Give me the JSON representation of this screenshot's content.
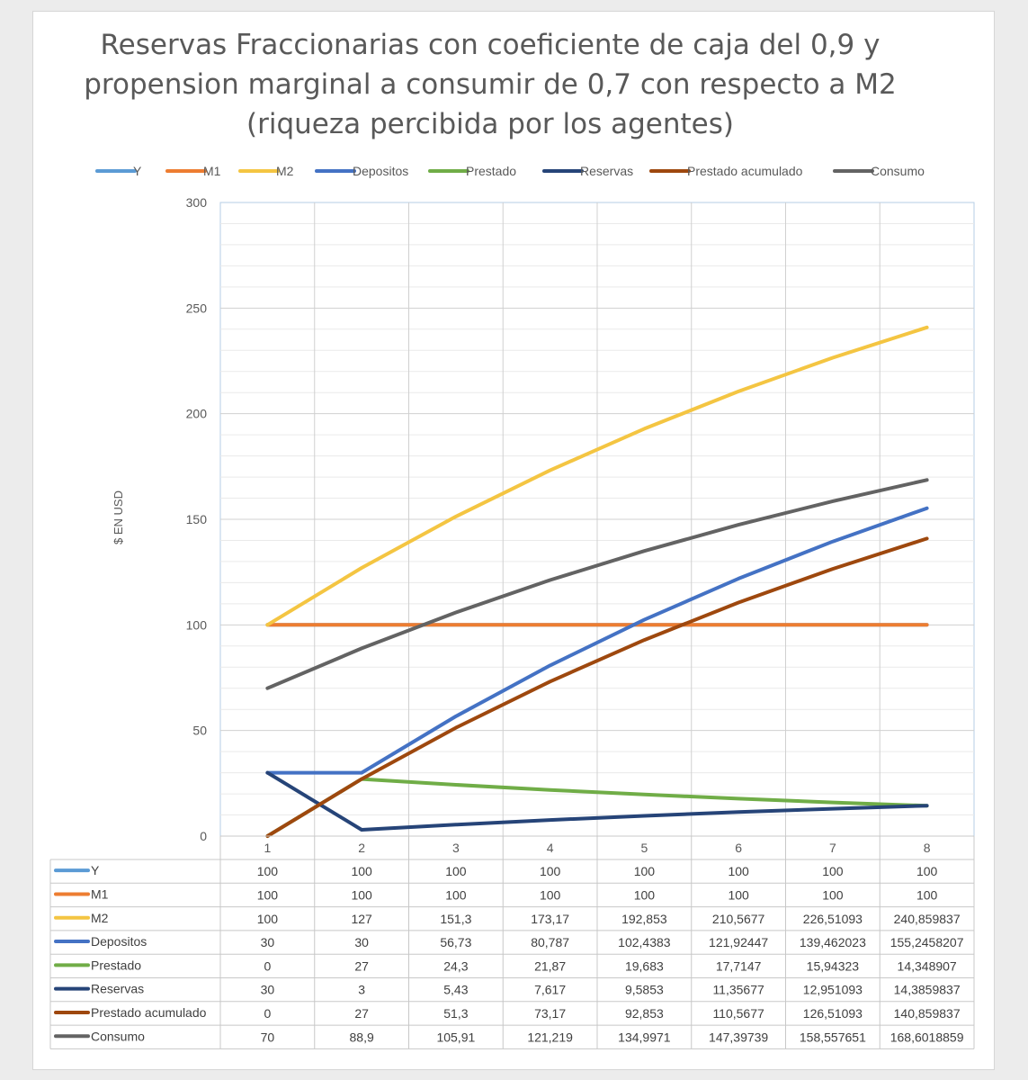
{
  "chart_data": {
    "type": "line",
    "title": "Reservas Fraccionarias con coeficiente de caja del 0,9 y propension marginal a consumir de 0,7 con respecto a M2 (riqueza percibida por los agentes)",
    "xlabel": "",
    "ylabel": "$ EN USD",
    "ylim": [
      0,
      300
    ],
    "yticks": [
      0,
      50,
      100,
      150,
      200,
      250,
      300
    ],
    "grid": true,
    "legend_position": "top",
    "categories": [
      "1",
      "2",
      "3",
      "4",
      "5",
      "6",
      "7",
      "8"
    ],
    "series": [
      {
        "name": "Y",
        "color": "#5b9bd5",
        "values": [
          100,
          100,
          100,
          100,
          100,
          100,
          100,
          100
        ],
        "labels": [
          "100",
          "100",
          "100",
          "100",
          "100",
          "100",
          "100",
          "100"
        ]
      },
      {
        "name": "M1",
        "color": "#ed7d31",
        "values": [
          100,
          100,
          100,
          100,
          100,
          100,
          100,
          100
        ],
        "labels": [
          "100",
          "100",
          "100",
          "100",
          "100",
          "100",
          "100",
          "100"
        ]
      },
      {
        "name": "M2",
        "color": "#f4c542",
        "values": [
          100,
          127,
          151.3,
          173.17,
          192.853,
          210.5677,
          226.51093,
          240.859837
        ],
        "labels": [
          "100",
          "127",
          "151,3",
          "173,17",
          "192,853",
          "210,5677",
          "226,51093",
          "240,859837"
        ]
      },
      {
        "name": "Depositos",
        "color": "#4472c4",
        "values": [
          30,
          30,
          56.73,
          80.787,
          102.4383,
          121.92447,
          139.462023,
          155.2458207
        ],
        "labels": [
          "30",
          "30",
          "56,73",
          "80,787",
          "102,4383",
          "121,92447",
          "139,462023",
          "155,2458207"
        ]
      },
      {
        "name": "Prestado",
        "color": "#70ad47",
        "values": [
          0,
          27,
          24.3,
          21.87,
          19.683,
          17.7147,
          15.94323,
          14.348907
        ],
        "labels": [
          "0",
          "27",
          "24,3",
          "21,87",
          "19,683",
          "17,7147",
          "15,94323",
          "14,348907"
        ]
      },
      {
        "name": "Reservas",
        "color": "#264478",
        "values": [
          30,
          3,
          5.43,
          7.617,
          9.5853,
          11.35677,
          12.951093,
          14.3859837
        ],
        "labels": [
          "30",
          "3",
          "5,43",
          "7,617",
          "9,5853",
          "11,35677",
          "12,951093",
          "14,3859837"
        ]
      },
      {
        "name": "Prestado acumulado",
        "color": "#9e480e",
        "values": [
          0,
          27,
          51.3,
          73.17,
          92.853,
          110.5677,
          126.51093,
          140.859837
        ],
        "labels": [
          "0",
          "27",
          "51,3",
          "73,17",
          "92,853",
          "110,5677",
          "126,51093",
          "140,859837"
        ]
      },
      {
        "name": "Consumo",
        "color": "#636363",
        "values": [
          70,
          88.9,
          105.91,
          121.219,
          134.9971,
          147.39739,
          158.557651,
          168.6018859
        ],
        "labels": [
          "70",
          "88,9",
          "105,91",
          "121,219",
          "134,9971",
          "147,39739",
          "158,557651",
          "168,6018859"
        ]
      }
    ]
  }
}
